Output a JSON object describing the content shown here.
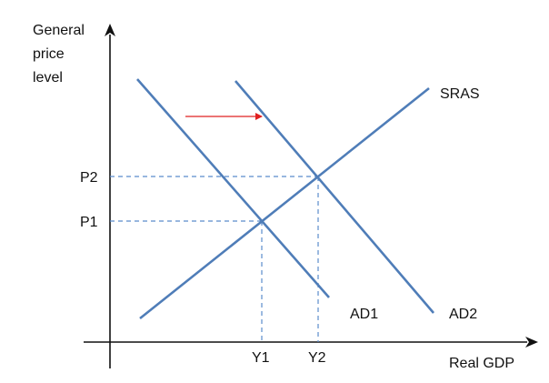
{
  "colors": {
    "axis": "#111111",
    "curve": "#4f7db8",
    "guide": "#5b8ccc",
    "arrow": "#e02020",
    "text": "#111111"
  },
  "axes": {
    "y_label_lines": [
      "General",
      "price",
      "level"
    ],
    "x_label": "Real GDP"
  },
  "curves": {
    "sras": "SRAS",
    "ad1": "AD1",
    "ad2": "AD2"
  },
  "price_levels": [
    "P1",
    "P2"
  ],
  "outputs": [
    "Y1",
    "Y2"
  ],
  "shift": {
    "direction": "right",
    "icon": "arrow-right-icon"
  }
}
